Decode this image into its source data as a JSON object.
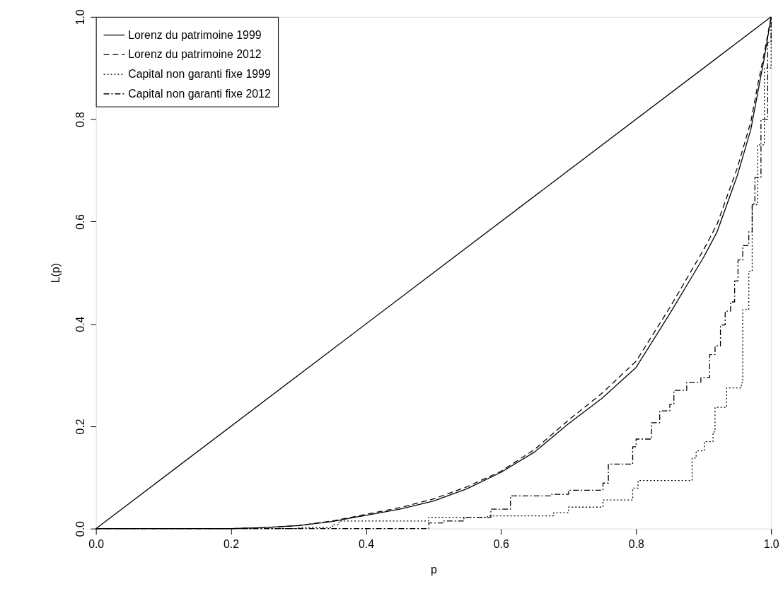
{
  "chart_data": {
    "type": "line",
    "xlabel": "p",
    "ylabel": "L(p)",
    "xlim": [
      0,
      1
    ],
    "ylim": [
      0,
      1
    ],
    "xticks": [
      {
        "value": 0,
        "label": "0.0"
      },
      0.2,
      0.4,
      0.6,
      0.8,
      {
        "value": 1,
        "label": "1.0"
      }
    ],
    "yticks": [
      {
        "value": 0,
        "label": "0.0"
      },
      0.2,
      0.4,
      0.6,
      0.8,
      {
        "value": 1,
        "label": "1.0"
      }
    ],
    "grid": false,
    "legend": "top left",
    "marker": "none",
    "series": [
      {
        "color": "#000000",
        "line_style": "solid",
        "x": [
          0,
          1
        ],
        "values": [
          0,
          1
        ]
      },
      {
        "name": "Lorenz du patrimoine 1999",
        "color": "#000000",
        "line_style": "solid",
        "x": [
          0,
          0.1,
          0.2,
          0.25,
          0.3,
          0.35,
          0.4,
          0.45,
          0.5,
          0.55,
          0.6,
          0.65,
          0.7,
          0.75,
          0.8,
          0.85,
          0.9,
          0.92,
          0.95,
          0.97,
          0.98,
          0.99,
          1
        ],
        "values": [
          0,
          0,
          0,
          0.002,
          0.006,
          0.014,
          0.026,
          0.038,
          0.054,
          0.078,
          0.11,
          0.15,
          0.205,
          0.255,
          0.315,
          0.42,
          0.53,
          0.58,
          0.69,
          0.78,
          0.85,
          0.92,
          1
        ]
      },
      {
        "name": "Lorenz du patrimoine 2012",
        "color": "#000000",
        "line_style": "dashed",
        "x": [
          0,
          0.1,
          0.2,
          0.25,
          0.3,
          0.35,
          0.4,
          0.45,
          0.5,
          0.55,
          0.6,
          0.65,
          0.7,
          0.75,
          0.8,
          0.85,
          0.9,
          0.92,
          0.95,
          0.97,
          0.98,
          0.99,
          1
        ],
        "values": [
          0,
          0,
          0,
          0.002,
          0.006,
          0.015,
          0.028,
          0.041,
          0.058,
          0.082,
          0.112,
          0.155,
          0.212,
          0.265,
          0.327,
          0.432,
          0.545,
          0.595,
          0.705,
          0.795,
          0.865,
          0.93,
          1
        ]
      },
      {
        "name": "Capital non garanti fixe 1999",
        "type": "step",
        "color": "#000000",
        "line_style": "dotted",
        "x": [
          0,
          0.3,
          0.35,
          0.36,
          0.493,
          0.58,
          0.678,
          0.7,
          0.751,
          0.795,
          0.803,
          0.883,
          0.889,
          0.901,
          0.914,
          0.917,
          0.934,
          0.956,
          0.958,
          0.967,
          0.972,
          0.98,
          0.99,
          1
        ],
        "values": [
          0,
          0.002,
          0.008,
          0.015,
          0.022,
          0.025,
          0.031,
          0.042,
          0.056,
          0.079,
          0.094,
          0.138,
          0.152,
          0.17,
          0.189,
          0.237,
          0.275,
          0.285,
          0.428,
          0.503,
          0.633,
          0.75,
          0.9,
          1
        ]
      },
      {
        "name": "Capital non garanti fixe 2012",
        "type": "step",
        "color": "#000000",
        "line_style": "dashdot",
        "x": [
          0,
          0.493,
          0.515,
          0.545,
          0.585,
          0.614,
          0.675,
          0.7,
          0.751,
          0.759,
          0.795,
          0.8,
          0.823,
          0.835,
          0.85,
          0.856,
          0.875,
          0.896,
          0.909,
          0.917,
          0.925,
          0.932,
          0.94,
          0.946,
          0.951,
          0.958,
          0.967,
          0.972,
          0.976,
          0.985,
          0.995,
          1
        ],
        "values": [
          0,
          0.011,
          0.015,
          0.022,
          0.038,
          0.064,
          0.067,
          0.075,
          0.089,
          0.126,
          0.16,
          0.175,
          0.207,
          0.23,
          0.243,
          0.27,
          0.286,
          0.295,
          0.34,
          0.357,
          0.398,
          0.425,
          0.443,
          0.484,
          0.525,
          0.553,
          0.58,
          0.635,
          0.686,
          0.8,
          0.95,
          1
        ]
      }
    ]
  }
}
